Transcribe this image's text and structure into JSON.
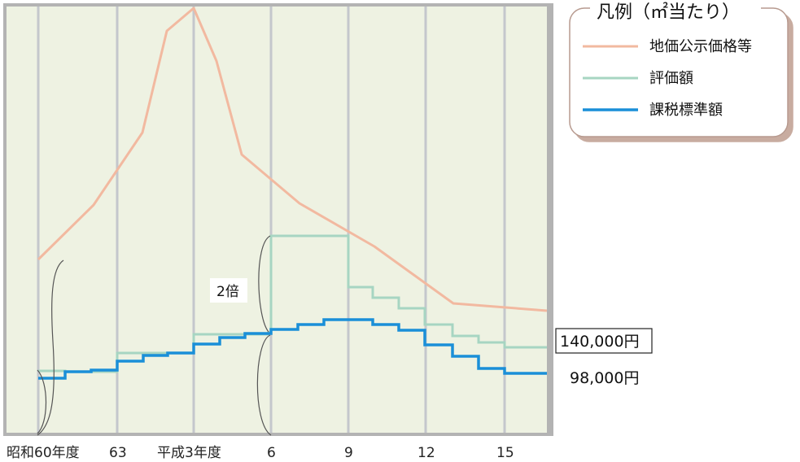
{
  "chart_data": {
    "type": "line",
    "x_ticks": [
      "昭和60年度",
      "63",
      "平成3年度",
      "6",
      "9",
      "12",
      "15"
    ],
    "series": [
      {
        "name": "地価公示価格等",
        "color": "#f2b9a0",
        "step": false,
        "points": [
          [
            0,
            0.48
          ],
          [
            1,
            0.77
          ],
          [
            1.5,
            1.1
          ],
          [
            2,
            1.95
          ],
          [
            2.5,
            2.57
          ],
          [
            3,
            3.1
          ],
          [
            3.5,
            2.58
          ],
          [
            4,
            1.98
          ],
          [
            5,
            1.6
          ],
          [
            6,
            1.05
          ],
          [
            7,
            0.7
          ],
          [
            8,
            0.37
          ],
          [
            9,
            0.32
          ],
          [
            10,
            0.3
          ]
        ]
      },
      {
        "name": "評価額",
        "color": "#9ed3bd",
        "step": true,
        "points": [
          [
            0,
            0
          ],
          [
            1,
            0.02
          ],
          [
            2,
            0.04
          ],
          [
            3,
            0.4
          ],
          [
            4,
            0.4
          ],
          [
            5,
            0.5
          ],
          [
            6,
            0.5
          ],
          [
            7,
            1.32
          ],
          [
            8,
            1.32
          ],
          [
            9,
            1.32
          ],
          [
            10,
            0.64
          ],
          [
            11,
            0.55
          ],
          [
            12,
            0.46
          ],
          [
            13,
            0.24
          ],
          [
            14,
            0.11
          ],
          [
            15,
            0.04
          ],
          [
            16,
            0
          ]
        ],
        "comment": "normalized step values derived from plot"
      }
    ],
    "annotations": {
      "multiplier": "2倍",
      "value_high": "140,000円",
      "value_low": "98,000円"
    },
    "legend": {
      "title": "凡例（㎡当たり）",
      "items": [
        {
          "label": "地価公示価格等",
          "color": "#f2b9a0"
        },
        {
          "label": "評価額",
          "color": "#9ed3bd"
        },
        {
          "label": "課税標準額",
          "color": "#1a8fd8"
        }
      ]
    }
  }
}
